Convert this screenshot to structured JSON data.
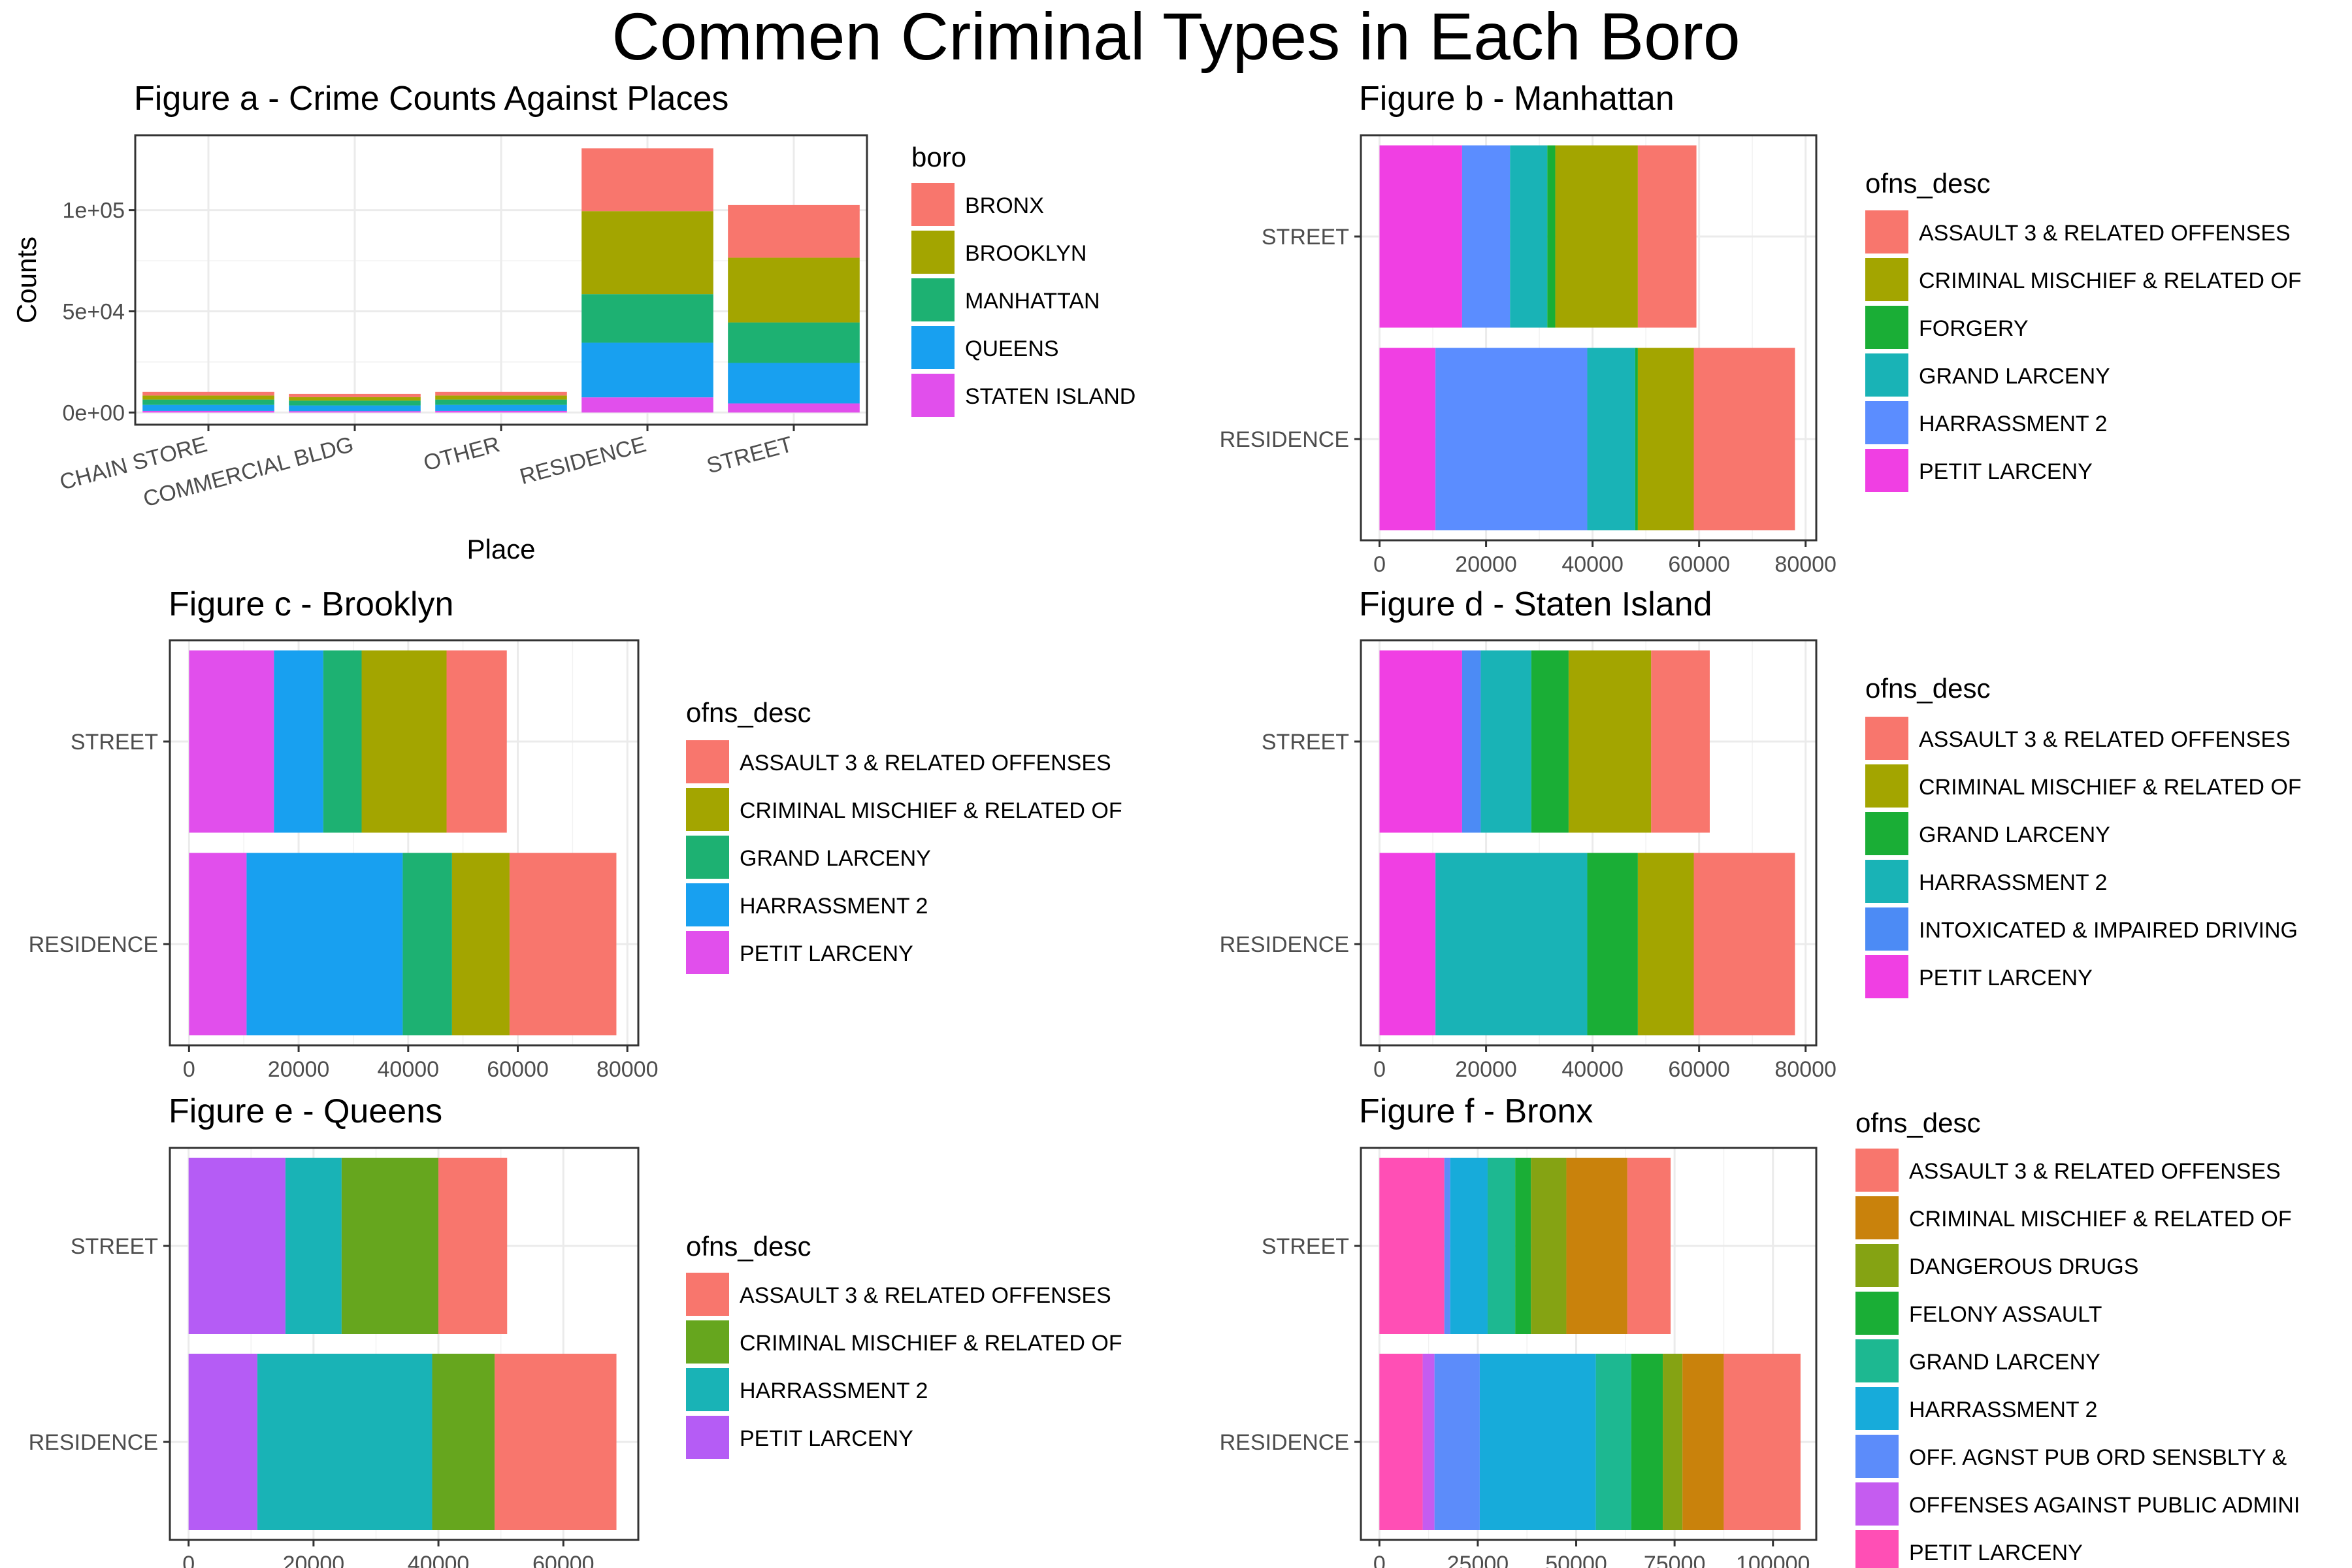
{
  "title": "Commen Criminal Types in Each Boro",
  "colors": {
    "ASSAULT 3 & RELATED OFFENSES": "#F8766D",
    "CRIMINAL MISCHIEF & RELATED OF": "#A3A500",
    "FORGERY": "#1AAE36",
    "GRAND LARCENY": "#19B3B6",
    "HARRASSMENT 2": "#5B8DFF",
    "PETIT LARCENY": "#F03FE3",
    "INTOXICATED & IMPAIRED DRIVING": "#4C8BF5",
    "BRONX": "#F8766D",
    "BROOKLYN": "#A3A500",
    "MANHATTAN": "#1DB172",
    "QUEENS": "#18A0F0",
    "STATEN ISLAND": "#E14FEC"
  },
  "chart_data": [
    {
      "id": "a",
      "type": "bar",
      "stacked": true,
      "title": "Figure a - Crime Counts Against Places",
      "xlabel": "Place",
      "ylabel": "Counts",
      "categories": [
        "CHAIN STORE",
        "COMMERCIAL BLDG",
        "OTHER",
        "RESIDENCE",
        "STREET"
      ],
      "ylim": [
        -6000,
        137000
      ],
      "yticks": [
        0,
        50000,
        100000
      ],
      "ytick_labels": [
        "0e+00",
        "5e+04",
        "1e+05"
      ],
      "grid": true,
      "legend_title": "boro",
      "legend_position": "right",
      "series": [
        {
          "name": "STATEN ISLAND",
          "color": "#E14FEC",
          "values": [
            800,
            700,
            800,
            7500,
            4500
          ]
        },
        {
          "name": "QUEENS",
          "color": "#18A0F0",
          "values": [
            3000,
            2800,
            3000,
            27000,
            20000
          ]
        },
        {
          "name": "MANHATTAN",
          "color": "#1DB172",
          "values": [
            2600,
            2400,
            2600,
            24000,
            20000
          ]
        },
        {
          "name": "BROOKLYN",
          "color": "#A3A500",
          "values": [
            2000,
            1700,
            2000,
            41000,
            32000
          ]
        },
        {
          "name": "BRONX",
          "color": "#F8766D",
          "values": [
            1800,
            1600,
            1800,
            31000,
            26000
          ]
        }
      ],
      "legend_order": [
        "BRONX",
        "BROOKLYN",
        "MANHATTAN",
        "QUEENS",
        "STATEN ISLAND"
      ]
    },
    {
      "id": "b",
      "type": "bar",
      "orientation": "horizontal",
      "stacked": true,
      "title": "Figure b - Manhattan",
      "categories": [
        "STREET",
        "RESIDENCE"
      ],
      "xlim": [
        -3500,
        82000
      ],
      "xticks": [
        0,
        20000,
        40000,
        60000,
        80000
      ],
      "grid": true,
      "legend_title": "ofns_desc",
      "legend_position": "right",
      "series": [
        {
          "name": "PETIT LARCENY",
          "color": "#F03FE3",
          "values": [
            15500,
            10500
          ]
        },
        {
          "name": "HARRASSMENT 2",
          "color": "#5B8DFF",
          "values": [
            9000,
            28500
          ]
        },
        {
          "name": "GRAND LARCENY",
          "color": "#19B3B6",
          "values": [
            7000,
            9000
          ]
        },
        {
          "name": "FORGERY",
          "color": "#1AAE36",
          "values": [
            1500,
            500
          ]
        },
        {
          "name": "CRIMINAL MISCHIEF & RELATED OF",
          "color": "#A3A500",
          "values": [
            15500,
            10500
          ]
        },
        {
          "name": "ASSAULT 3 & RELATED OFFENSES",
          "color": "#F8766D",
          "values": [
            11000,
            19000
          ]
        }
      ],
      "legend_order": [
        "ASSAULT 3 & RELATED OFFENSES",
        "CRIMINAL MISCHIEF & RELATED OF",
        "FORGERY",
        "GRAND LARCENY",
        "HARRASSMENT 2",
        "PETIT LARCENY"
      ]
    },
    {
      "id": "c",
      "type": "bar",
      "orientation": "horizontal",
      "stacked": true,
      "title": "Figure c - Brooklyn",
      "categories": [
        "STREET",
        "RESIDENCE"
      ],
      "xlim": [
        -3500,
        82000
      ],
      "xticks": [
        0,
        20000,
        40000,
        60000,
        80000
      ],
      "grid": true,
      "legend_title": "ofns_desc",
      "legend_position": "right",
      "series": [
        {
          "name": "PETIT LARCENY",
          "color": "#E14FEC",
          "values": [
            15500,
            10500
          ]
        },
        {
          "name": "HARRASSMENT 2",
          "color": "#18A0F0",
          "values": [
            9000,
            28500
          ]
        },
        {
          "name": "GRAND LARCENY",
          "color": "#1DB172",
          "values": [
            7000,
            9000
          ]
        },
        {
          "name": "CRIMINAL MISCHIEF & RELATED OF",
          "color": "#A3A500",
          "values": [
            15500,
            10500
          ]
        },
        {
          "name": "ASSAULT 3 & RELATED OFFENSES",
          "color": "#F8766D",
          "values": [
            11000,
            19500
          ]
        }
      ],
      "legend_order": [
        "ASSAULT 3 & RELATED OFFENSES",
        "CRIMINAL MISCHIEF & RELATED OF",
        "GRAND LARCENY",
        "HARRASSMENT 2",
        "PETIT LARCENY"
      ]
    },
    {
      "id": "d",
      "type": "bar",
      "orientation": "horizontal",
      "stacked": true,
      "title": "Figure d - Staten Island",
      "categories": [
        "STREET",
        "RESIDENCE"
      ],
      "xlim": [
        -3500,
        82000
      ],
      "xticks": [
        0,
        20000,
        40000,
        60000,
        80000
      ],
      "grid": true,
      "legend_title": "ofns_desc",
      "legend_position": "right",
      "series": [
        {
          "name": "PETIT LARCENY",
          "color": "#F03FE3",
          "values": [
            15500,
            10500
          ]
        },
        {
          "name": "INTOXICATED & IMPAIRED DRIVING",
          "color": "#4C8BF5",
          "values": [
            3500,
            0
          ]
        },
        {
          "name": "HARRASSMENT 2",
          "color": "#19B3B6",
          "values": [
            9500,
            28500
          ]
        },
        {
          "name": "GRAND LARCENY",
          "color": "#1AAE36",
          "values": [
            7000,
            9500
          ]
        },
        {
          "name": "CRIMINAL MISCHIEF & RELATED OF",
          "color": "#A3A500",
          "values": [
            15500,
            10500
          ]
        },
        {
          "name": "ASSAULT 3 & RELATED OFFENSES",
          "color": "#F8766D",
          "values": [
            11000,
            19000
          ]
        }
      ],
      "legend_order": [
        "ASSAULT 3 & RELATED OFFENSES",
        "CRIMINAL MISCHIEF & RELATED OF",
        "GRAND LARCENY",
        "HARRASSMENT 2",
        "INTOXICATED & IMPAIRED DRIVING",
        "PETIT LARCENY"
      ]
    },
    {
      "id": "e",
      "type": "bar",
      "orientation": "horizontal",
      "stacked": true,
      "title": "Figure e - Queens",
      "categories": [
        "STREET",
        "RESIDENCE"
      ],
      "xlim": [
        -3000,
        72000
      ],
      "xticks": [
        0,
        20000,
        40000,
        60000
      ],
      "grid": true,
      "legend_title": "ofns_desc",
      "legend_position": "right",
      "series": [
        {
          "name": "PETIT LARCENY",
          "color": "#B55CF5",
          "values": [
            15500,
            11000
          ]
        },
        {
          "name": "HARRASSMENT 2",
          "color": "#19B3B6",
          "values": [
            9000,
            28000
          ]
        },
        {
          "name": "CRIMINAL MISCHIEF & RELATED OF",
          "color": "#66A61E",
          "values": [
            15500,
            10000
          ]
        },
        {
          "name": "ASSAULT 3 & RELATED OFFENSES",
          "color": "#F8766D",
          "values": [
            11000,
            19500
          ]
        }
      ],
      "legend_order": [
        "ASSAULT 3 & RELATED OFFENSES",
        "CRIMINAL MISCHIEF & RELATED OF",
        "HARRASSMENT 2",
        "PETIT LARCENY"
      ]
    },
    {
      "id": "f",
      "type": "bar",
      "orientation": "horizontal",
      "stacked": true,
      "title": "Figure f - Bronx",
      "categories": [
        "STREET",
        "RESIDENCE"
      ],
      "xlim": [
        -4700,
        111000
      ],
      "xticks": [
        0,
        25000,
        50000,
        75000,
        100000
      ],
      "grid": true,
      "legend_title": "ofns_desc",
      "legend_position": "right",
      "series": [
        {
          "name": "PETIT LARCENY",
          "color": "#FF4FB5",
          "values": [
            16500,
            11000
          ]
        },
        {
          "name": "OFFENSES AGAINST PUBLIC ADMINI",
          "color": "#C55CF0",
          "values": [
            0,
            3000
          ]
        },
        {
          "name": "OFF. AGNST PUB ORD SENSBLTY &",
          "color": "#5C8CFA",
          "values": [
            1500,
            11500
          ]
        },
        {
          "name": "HARRASSMENT 2",
          "color": "#17ABDA",
          "values": [
            9500,
            29500
          ]
        },
        {
          "name": "GRAND LARCENY",
          "color": "#1DB891",
          "values": [
            7000,
            9000
          ]
        },
        {
          "name": "FELONY ASSAULT",
          "color": "#1AAE36",
          "values": [
            4000,
            8000
          ]
        },
        {
          "name": "DANGEROUS DRUGS",
          "color": "#85A313",
          "values": [
            9000,
            5000
          ]
        },
        {
          "name": "CRIMINAL MISCHIEF & RELATED OF",
          "color": "#C9820C",
          "values": [
            15500,
            10500
          ]
        },
        {
          "name": "ASSAULT 3 & RELATED OFFENSES",
          "color": "#F8766D",
          "values": [
            11000,
            19500
          ]
        }
      ],
      "legend_order": [
        "ASSAULT 3 & RELATED OFFENSES",
        "CRIMINAL MISCHIEF & RELATED OF",
        "DANGEROUS DRUGS",
        "FELONY ASSAULT",
        "GRAND LARCENY",
        "HARRASSMENT 2",
        "OFF. AGNST PUB ORD SENSBLTY &",
        "OFFENSES AGAINST PUBLIC ADMINI",
        "PETIT LARCENY"
      ]
    }
  ]
}
